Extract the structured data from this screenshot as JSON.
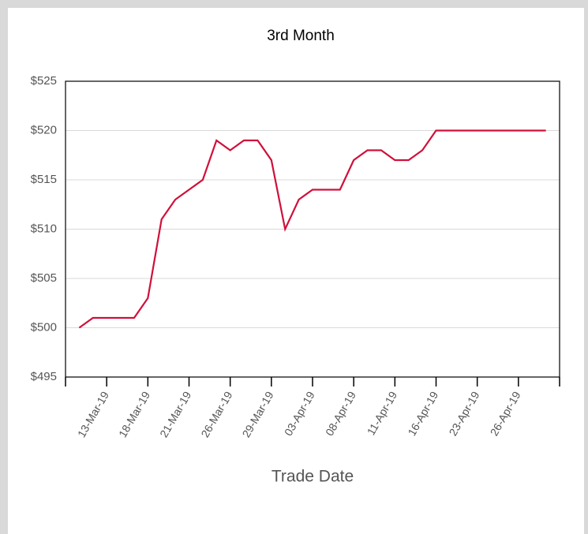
{
  "chart_data": {
    "type": "line",
    "title": "3rd Month",
    "x_label": "Trade Date",
    "categories": [
      null,
      null,
      "13-Mar-19",
      null,
      null,
      "18-Mar-19",
      null,
      null,
      "21-Mar-19",
      null,
      null,
      "26-Mar-19",
      null,
      null,
      "29-Mar-19",
      null,
      null,
      "03-Apr-19",
      null,
      null,
      "08-Apr-19",
      null,
      null,
      "11-Apr-19",
      null,
      null,
      "16-Apr-19",
      null,
      null,
      "23-Apr-19",
      null,
      null,
      "26-Apr-19",
      null,
      null
    ],
    "series": [
      {
        "name": "3rd Month",
        "color": "#d0103a",
        "values": [
          500,
          501,
          501,
          501,
          501,
          503,
          511,
          513,
          514,
          515,
          519,
          518,
          519,
          519,
          517,
          510,
          513,
          514,
          514,
          514,
          517,
          518,
          518,
          517,
          517,
          518,
          520,
          520,
          520,
          520,
          520,
          520,
          520,
          520,
          520
        ]
      }
    ],
    "ylim": [
      495,
      525
    ],
    "yticks": [
      {
        "value": 495,
        "label": "$495"
      },
      {
        "value": 500,
        "label": "$500"
      },
      {
        "value": 505,
        "label": "$505"
      },
      {
        "value": 510,
        "label": "$510"
      },
      {
        "value": 515,
        "label": "$515"
      },
      {
        "value": 520,
        "label": "$520"
      },
      {
        "value": 525,
        "label": "$525"
      }
    ],
    "grid": true
  }
}
